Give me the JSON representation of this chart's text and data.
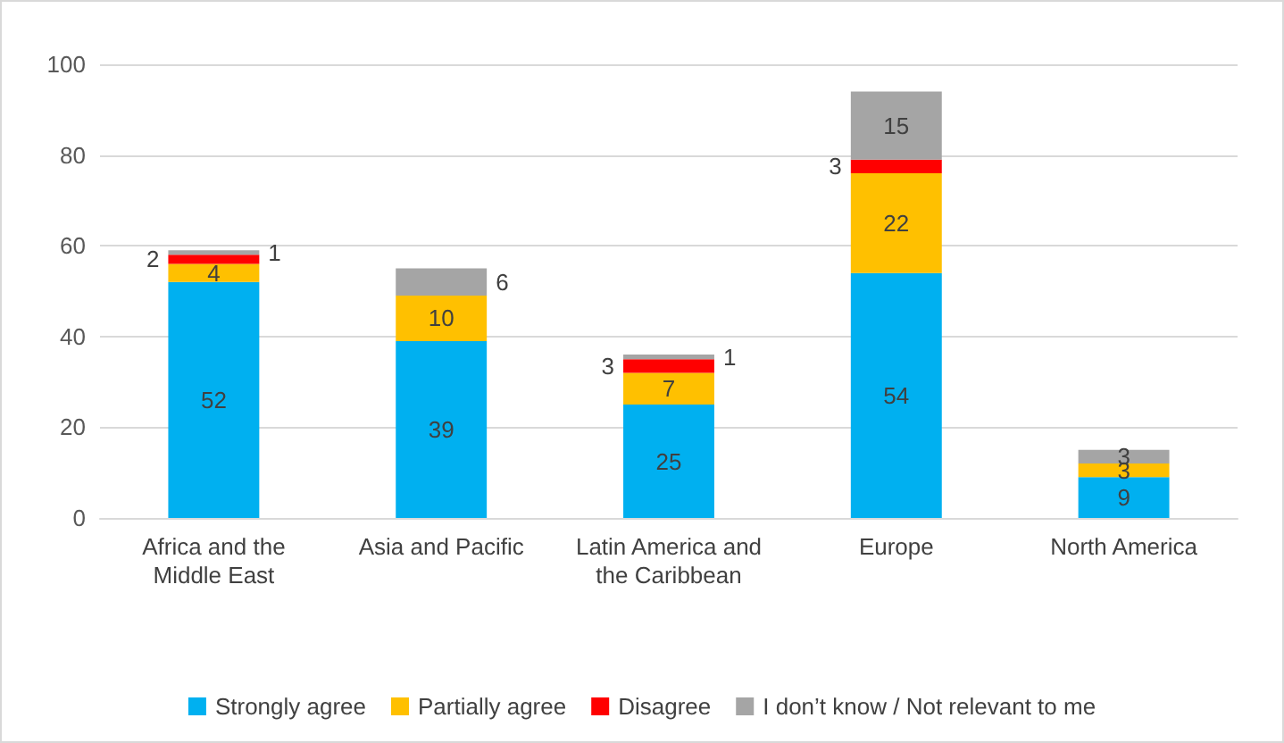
{
  "chart_data": {
    "type": "bar",
    "stacked": true,
    "categories": [
      "Africa and the Middle East",
      "Asia and Pacific",
      "Latin America and the Caribbean",
      "Europe",
      "North America"
    ],
    "series": [
      {
        "name": "Strongly agree",
        "color": "#00b0f0",
        "values": [
          52,
          39,
          25,
          54,
          9
        ]
      },
      {
        "name": "Partially agree",
        "color": "#ffc000",
        "values": [
          4,
          10,
          7,
          22,
          3
        ]
      },
      {
        "name": "Disagree",
        "color": "#ff0000",
        "values": [
          2,
          null,
          3,
          3,
          null
        ]
      },
      {
        "name": "I don’t know / Not relevant to me",
        "color": "#a5a5a5",
        "values": [
          1,
          6,
          1,
          15,
          3
        ]
      }
    ],
    "ylim": [
      0,
      100
    ],
    "yticks": [
      0,
      20,
      40,
      60,
      80,
      100
    ],
    "grid": "y",
    "legend": "bottom",
    "data_labels": true
  }
}
